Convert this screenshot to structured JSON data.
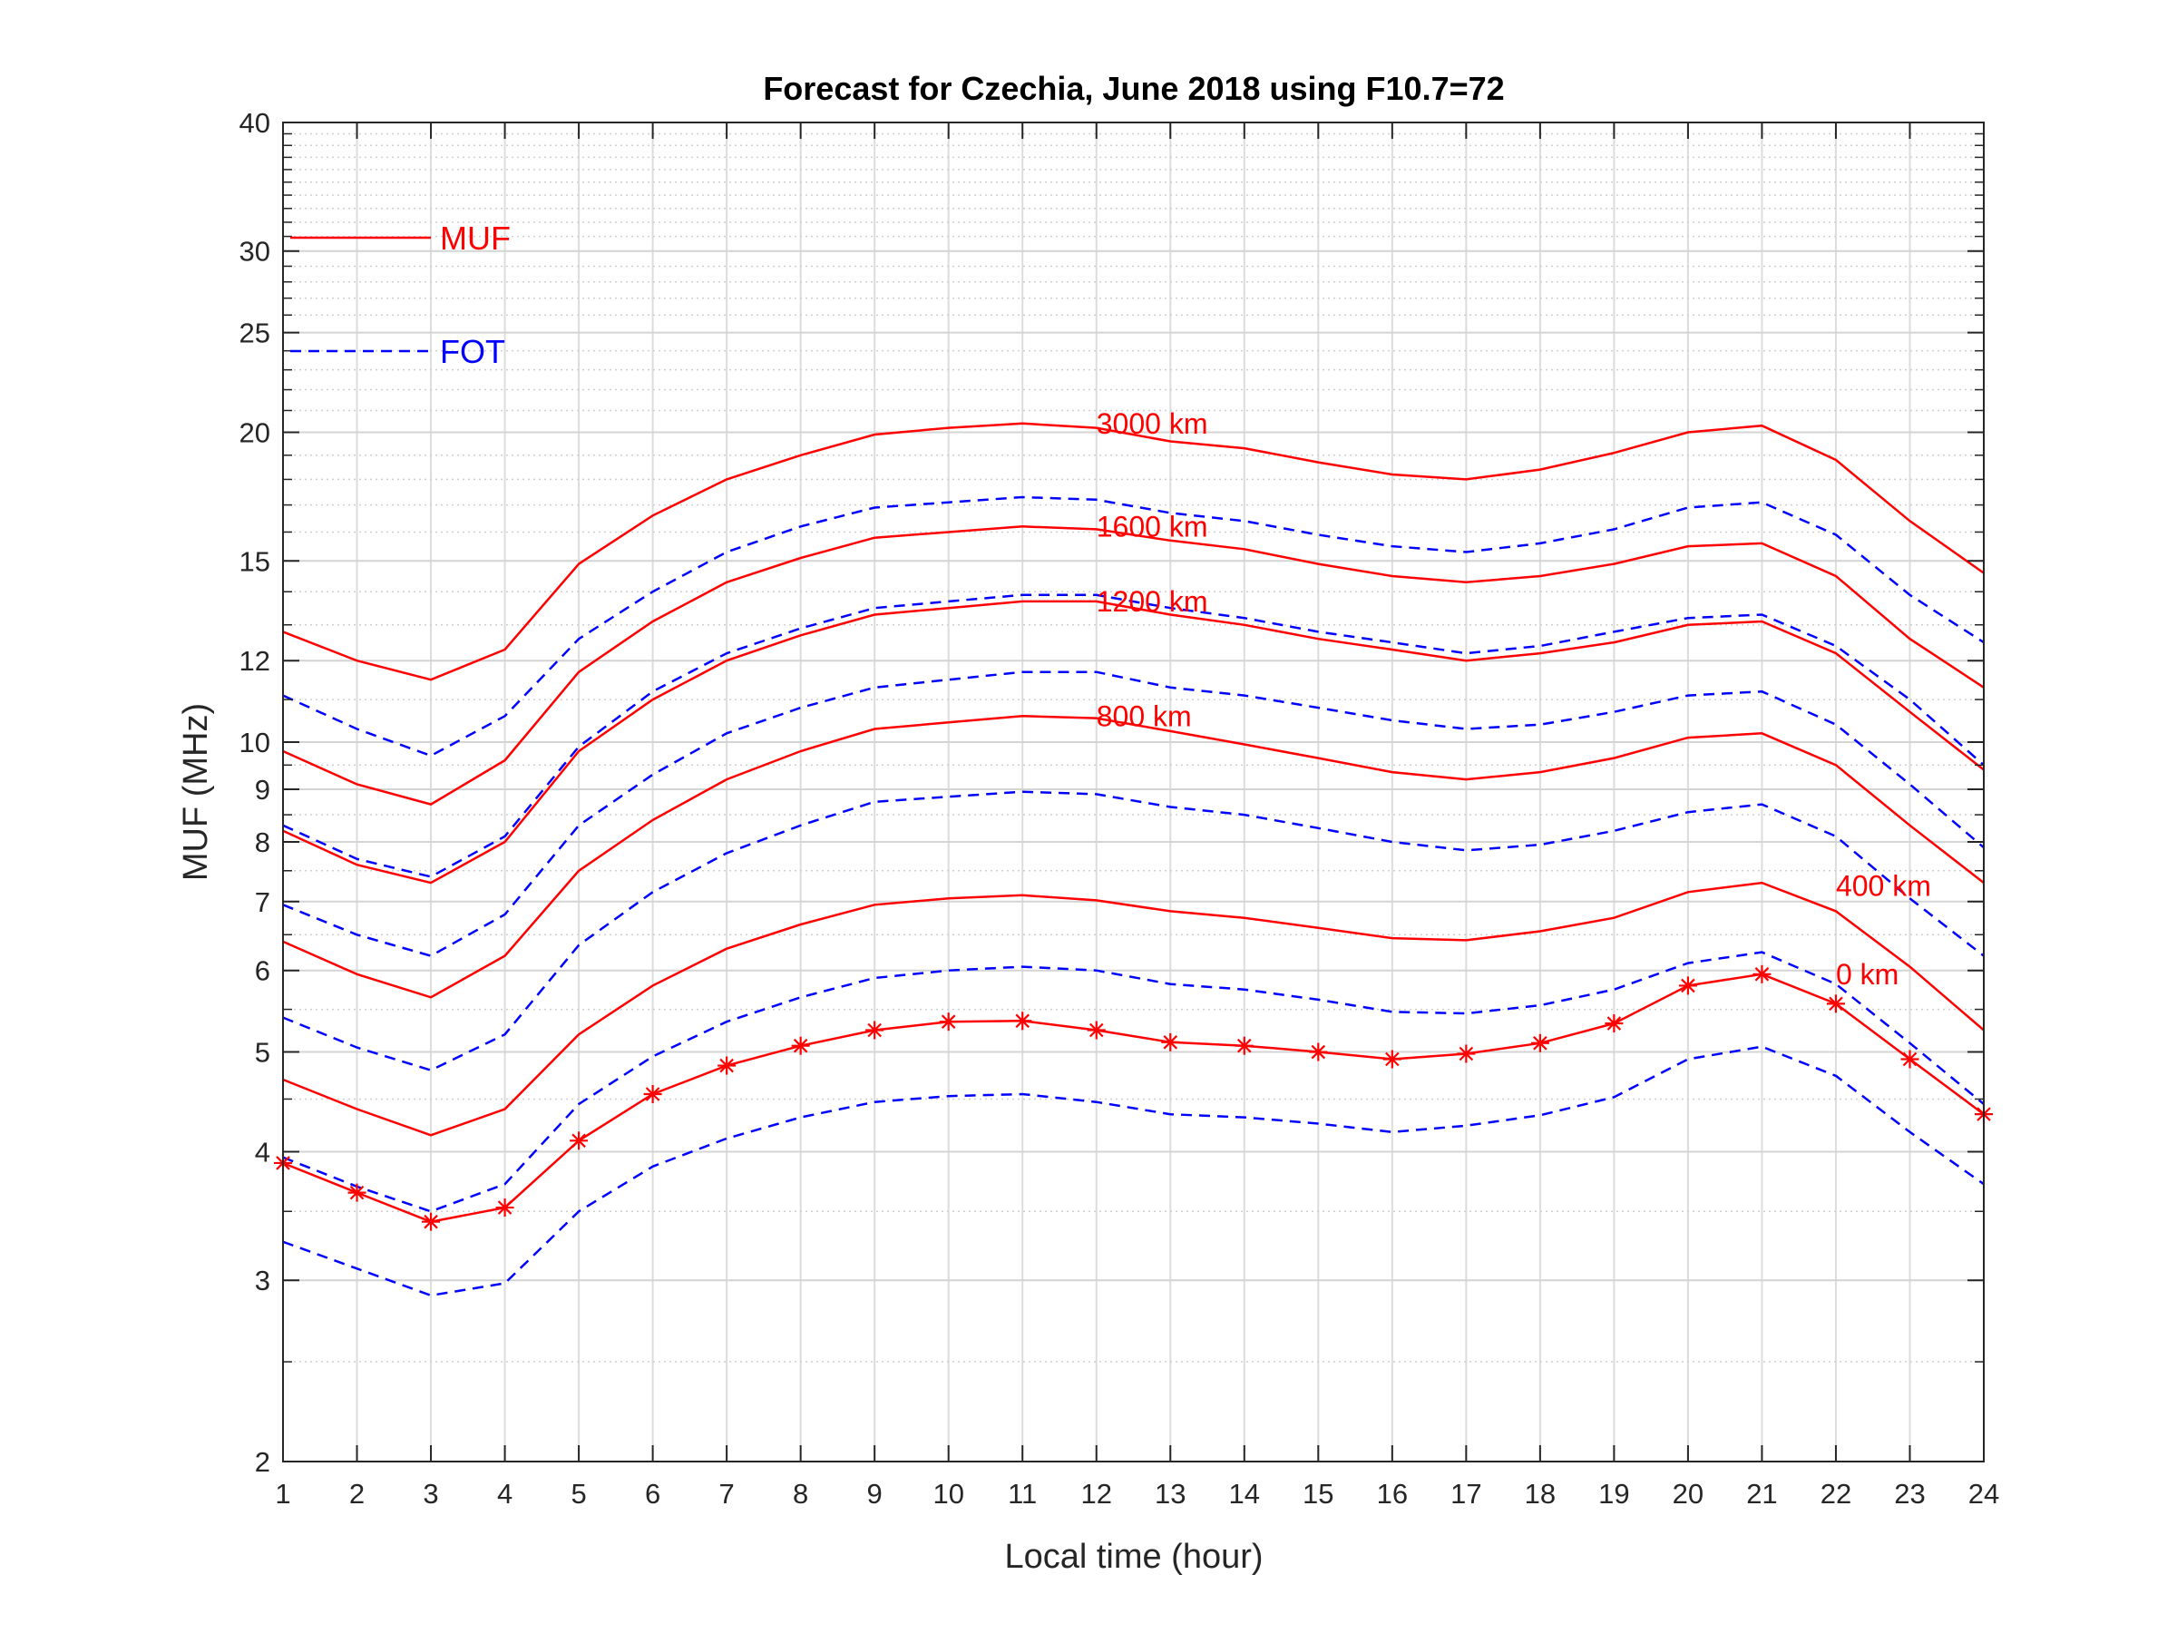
{
  "chart_data": {
    "type": "line",
    "title": "Forecast for Czechia, June 2018 using F10.7=72",
    "xlabel": "Local time (hour)",
    "ylabel": "MUF (MHz)",
    "xlim": [
      1,
      24
    ],
    "ylim": [
      2,
      40
    ],
    "yscale": "log",
    "grid": true,
    "x": [
      1,
      2,
      3,
      4,
      5,
      6,
      7,
      8,
      9,
      10,
      11,
      12,
      13,
      14,
      15,
      16,
      17,
      18,
      19,
      20,
      21,
      22,
      23,
      24
    ],
    "x_ticks": [
      "1",
      "2",
      "3",
      "4",
      "5",
      "6",
      "7",
      "8",
      "9",
      "10",
      "11",
      "12",
      "13",
      "14",
      "15",
      "16",
      "17",
      "18",
      "19",
      "20",
      "21",
      "22",
      "23",
      "24"
    ],
    "y_ticks": [
      {
        "value": 2,
        "label": "2"
      },
      {
        "value": 3,
        "label": "3"
      },
      {
        "value": 4,
        "label": "4"
      },
      {
        "value": 5,
        "label": "5"
      },
      {
        "value": 6,
        "label": "6"
      },
      {
        "value": 7,
        "label": "7"
      },
      {
        "value": 8,
        "label": "8"
      },
      {
        "value": 9,
        "label": "9"
      },
      {
        "value": 10,
        "label": "10"
      },
      {
        "value": 12,
        "label": "12"
      },
      {
        "value": 15,
        "label": "15"
      },
      {
        "value": 20,
        "label": "20"
      },
      {
        "value": 25,
        "label": "25"
      },
      {
        "value": 30,
        "label": "30"
      },
      {
        "value": 40,
        "label": "40"
      }
    ],
    "legend": {
      "placement": "top-left",
      "entries": [
        {
          "label": "MUF",
          "style": "solid",
          "color": "#ff0000"
        },
        {
          "label": "FOT",
          "style": "dashed",
          "color": "#0000ff"
        }
      ]
    },
    "colors": {
      "muf": "#ff0000",
      "fot": "#0000ff"
    },
    "muf_series": [
      {
        "label": "3000 km",
        "values": [
          12.8,
          12.0,
          11.5,
          12.3,
          14.9,
          16.6,
          18.0,
          19.0,
          19.9,
          20.2,
          20.4,
          20.2,
          19.6,
          19.3,
          18.7,
          18.2,
          18.0,
          18.4,
          19.1,
          20.0,
          20.3,
          18.8,
          16.4,
          14.6
        ]
      },
      {
        "label": "1600 km",
        "values": [
          9.8,
          9.1,
          8.7,
          9.6,
          11.7,
          13.1,
          14.3,
          15.1,
          15.8,
          16.0,
          16.2,
          16.1,
          15.7,
          15.4,
          14.9,
          14.5,
          14.3,
          14.5,
          14.9,
          15.5,
          15.6,
          14.5,
          12.6,
          11.3
        ]
      },
      {
        "label": "1200 km",
        "values": [
          8.2,
          7.6,
          7.3,
          8.0,
          9.8,
          11.0,
          12.0,
          12.7,
          13.3,
          13.5,
          13.7,
          13.7,
          13.3,
          13.0,
          12.6,
          12.3,
          12.0,
          12.2,
          12.5,
          13.0,
          13.1,
          12.2,
          10.7,
          9.4
        ]
      },
      {
        "label": "800 km",
        "values": [
          6.4,
          5.95,
          5.65,
          6.2,
          7.5,
          8.4,
          9.2,
          9.8,
          10.3,
          10.45,
          10.6,
          10.55,
          10.25,
          9.95,
          9.65,
          9.35,
          9.2,
          9.35,
          9.65,
          10.1,
          10.2,
          9.5,
          8.3,
          7.3
        ]
      },
      {
        "label": "400 km",
        "values": [
          4.7,
          4.4,
          4.15,
          4.4,
          5.2,
          5.8,
          6.3,
          6.65,
          6.95,
          7.05,
          7.1,
          7.02,
          6.85,
          6.75,
          6.6,
          6.45,
          6.42,
          6.55,
          6.75,
          7.15,
          7.3,
          6.85,
          6.05,
          5.25
        ]
      },
      {
        "label": "0 km",
        "markers": true,
        "values": [
          3.9,
          3.65,
          3.42,
          3.53,
          4.1,
          4.55,
          4.85,
          5.07,
          5.25,
          5.35,
          5.36,
          5.25,
          5.11,
          5.07,
          5.0,
          4.92,
          4.98,
          5.1,
          5.33,
          5.8,
          5.95,
          5.57,
          4.92,
          4.35
        ]
      }
    ],
    "fot_series": [
      {
        "values": [
          11.1,
          10.3,
          9.7,
          10.6,
          12.6,
          14.0,
          15.3,
          16.2,
          16.9,
          17.1,
          17.3,
          17.2,
          16.7,
          16.4,
          15.9,
          15.5,
          15.3,
          15.6,
          16.1,
          16.9,
          17.1,
          15.9,
          13.9,
          12.5
        ]
      },
      {
        "values": [
          8.3,
          7.7,
          7.4,
          8.1,
          9.9,
          11.2,
          12.2,
          12.9,
          13.5,
          13.7,
          13.9,
          13.9,
          13.5,
          13.2,
          12.8,
          12.5,
          12.2,
          12.4,
          12.8,
          13.2,
          13.3,
          12.4,
          11.0,
          9.5
        ]
      },
      {
        "values": [
          6.95,
          6.5,
          6.2,
          6.8,
          8.3,
          9.3,
          10.2,
          10.8,
          11.3,
          11.5,
          11.7,
          11.7,
          11.3,
          11.1,
          10.8,
          10.5,
          10.3,
          10.4,
          10.7,
          11.1,
          11.2,
          10.4,
          9.1,
          7.9
        ]
      },
      {
        "values": [
          5.4,
          5.05,
          4.8,
          5.2,
          6.35,
          7.15,
          7.8,
          8.3,
          8.75,
          8.85,
          8.95,
          8.9,
          8.65,
          8.5,
          8.25,
          8.0,
          7.85,
          7.95,
          8.2,
          8.55,
          8.7,
          8.1,
          7.05,
          6.2
        ]
      },
      {
        "values": [
          3.95,
          3.7,
          3.5,
          3.72,
          4.45,
          4.95,
          5.35,
          5.65,
          5.9,
          6.0,
          6.05,
          6.0,
          5.82,
          5.75,
          5.62,
          5.47,
          5.45,
          5.55,
          5.75,
          6.1,
          6.25,
          5.82,
          5.1,
          4.45
        ]
      },
      {
        "values": [
          3.27,
          3.08,
          2.9,
          2.98,
          3.5,
          3.87,
          4.12,
          4.32,
          4.47,
          4.53,
          4.55,
          4.47,
          4.35,
          4.32,
          4.26,
          4.18,
          4.24,
          4.34,
          4.52,
          4.92,
          5.06,
          4.74,
          4.18,
          3.72
        ]
      }
    ],
    "series_labels": [
      {
        "text": "3000 km",
        "x": 12.0,
        "y": 20.4
      },
      {
        "text": "1600 km",
        "x": 12.0,
        "y": 16.2
      },
      {
        "text": "1200 km",
        "x": 12.0,
        "y": 13.7
      },
      {
        "text": "800 km",
        "x": 12.0,
        "y": 10.6
      },
      {
        "text": "400 km",
        "x": 22.0,
        "y": 7.25
      },
      {
        "text": "0 km",
        "x": 22.0,
        "y": 5.95
      }
    ]
  }
}
